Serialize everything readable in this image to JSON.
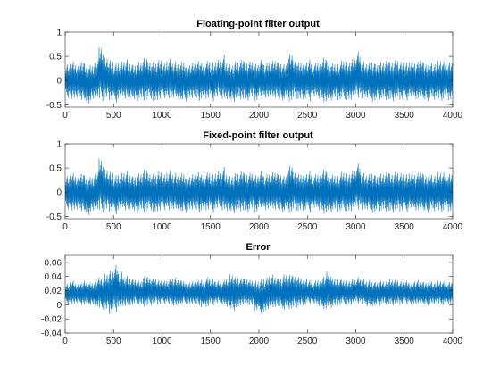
{
  "colors": {
    "series": "#0072BD",
    "axis": "#262626"
  },
  "chart_data": [
    {
      "type": "line",
      "title": "Floating-point filter output",
      "xlim": [
        0,
        4000
      ],
      "ylim": [
        -0.55,
        1
      ],
      "xticks": [
        0,
        500,
        1000,
        1500,
        2000,
        2500,
        3000,
        3500,
        4000
      ],
      "xtick_labels": [
        "0",
        "500",
        "1000",
        "1500",
        "2000",
        "2500",
        "3000",
        "3500",
        "4000"
      ],
      "yticks": [
        -0.5,
        0,
        0.5,
        1
      ],
      "ytick_labels": [
        "-0.5",
        "0",
        "0.5",
        "1"
      ],
      "series": [
        {
          "x_start": 0,
          "x_step": 50,
          "y_max": [
            0.35,
            0.42,
            0.38,
            0.45,
            0.4,
            0.36,
            0.48,
            0.72,
            0.5,
            0.44,
            0.38,
            0.42,
            0.46,
            0.4,
            0.37,
            0.43,
            0.52,
            0.41,
            0.39,
            0.45,
            0.38,
            0.47,
            0.42,
            0.4,
            0.44,
            0.38,
            0.41,
            0.46,
            0.39,
            0.43,
            0.4,
            0.45,
            0.55,
            0.42,
            0.38,
            0.44,
            0.48,
            0.4,
            0.42,
            0.37,
            0.45,
            0.39,
            0.43,
            0.47,
            0.41,
            0.38,
            0.6,
            0.44,
            0.4,
            0.42,
            0.46,
            0.39,
            0.43,
            0.55,
            0.45,
            0.4,
            0.38,
            0.44,
            0.41,
            0.47,
            0.62,
            0.42,
            0.4,
            0.45,
            0.38,
            0.43,
            0.46,
            0.4,
            0.44,
            0.41,
            0.39,
            0.45,
            0.42,
            0.48,
            0.4,
            0.43,
            0.38,
            0.44,
            0.42,
            0.4,
            0.43
          ],
          "y_min": [
            -0.38,
            -0.45,
            -0.4,
            -0.42,
            -0.5,
            -0.44,
            -0.39,
            -0.46,
            -0.41,
            -0.43,
            -0.48,
            -0.4,
            -0.42,
            -0.38,
            -0.45,
            -0.41,
            -0.44,
            -0.4,
            -0.47,
            -0.42,
            -0.39,
            -0.44,
            -0.4,
            -0.43,
            -0.46,
            -0.41,
            -0.38,
            -0.44,
            -0.42,
            -0.4,
            -0.45,
            -0.39,
            -0.43,
            -0.41,
            -0.46,
            -0.4,
            -0.42,
            -0.44,
            -0.39,
            -0.45,
            -0.41,
            -0.43,
            -0.4,
            -0.38,
            -0.44,
            -0.42,
            -0.46,
            -0.4,
            -0.43,
            -0.41,
            -0.45,
            -0.39,
            -0.42,
            -0.48,
            -0.44,
            -0.4,
            -0.43,
            -0.41,
            -0.45,
            -0.42,
            -0.39,
            -0.44,
            -0.4,
            -0.46,
            -0.42,
            -0.41,
            -0.43,
            -0.45,
            -0.4,
            -0.42,
            -0.44,
            -0.39,
            -0.43,
            -0.41,
            -0.45,
            -0.4,
            -0.42,
            -0.44,
            -0.41,
            -0.43,
            -0.4
          ]
        }
      ]
    },
    {
      "type": "line",
      "title": "Fixed-point filter output",
      "xlim": [
        0,
        4000
      ],
      "ylim": [
        -0.55,
        1
      ],
      "xticks": [
        0,
        500,
        1000,
        1500,
        2000,
        2500,
        3000,
        3500,
        4000
      ],
      "xtick_labels": [
        "0",
        "500",
        "1000",
        "1500",
        "2000",
        "2500",
        "3000",
        "3500",
        "4000"
      ],
      "yticks": [
        -0.5,
        0,
        0.5,
        1
      ],
      "ytick_labels": [
        "-0.5",
        "0",
        "0.5",
        "1"
      ],
      "series": [
        {
          "x_start": 0,
          "x_step": 50,
          "y_max": [
            0.35,
            0.42,
            0.38,
            0.45,
            0.4,
            0.36,
            0.48,
            0.72,
            0.5,
            0.44,
            0.38,
            0.42,
            0.46,
            0.4,
            0.37,
            0.43,
            0.52,
            0.41,
            0.39,
            0.45,
            0.38,
            0.47,
            0.42,
            0.4,
            0.44,
            0.38,
            0.41,
            0.46,
            0.39,
            0.43,
            0.4,
            0.45,
            0.55,
            0.42,
            0.38,
            0.44,
            0.48,
            0.4,
            0.42,
            0.37,
            0.45,
            0.39,
            0.43,
            0.47,
            0.41,
            0.38,
            0.6,
            0.44,
            0.4,
            0.42,
            0.46,
            0.39,
            0.43,
            0.55,
            0.45,
            0.4,
            0.38,
            0.44,
            0.41,
            0.47,
            0.62,
            0.42,
            0.4,
            0.45,
            0.38,
            0.43,
            0.46,
            0.4,
            0.44,
            0.41,
            0.39,
            0.45,
            0.42,
            0.48,
            0.4,
            0.43,
            0.38,
            0.44,
            0.42,
            0.4,
            0.43
          ],
          "y_min": [
            -0.38,
            -0.45,
            -0.4,
            -0.42,
            -0.5,
            -0.44,
            -0.39,
            -0.46,
            -0.41,
            -0.43,
            -0.48,
            -0.4,
            -0.42,
            -0.38,
            -0.45,
            -0.41,
            -0.44,
            -0.4,
            -0.47,
            -0.42,
            -0.39,
            -0.44,
            -0.4,
            -0.43,
            -0.46,
            -0.41,
            -0.38,
            -0.44,
            -0.42,
            -0.4,
            -0.45,
            -0.39,
            -0.43,
            -0.41,
            -0.46,
            -0.4,
            -0.42,
            -0.44,
            -0.39,
            -0.45,
            -0.41,
            -0.43,
            -0.4,
            -0.38,
            -0.44,
            -0.42,
            -0.46,
            -0.4,
            -0.43,
            -0.41,
            -0.45,
            -0.39,
            -0.42,
            -0.48,
            -0.44,
            -0.4,
            -0.43,
            -0.41,
            -0.45,
            -0.42,
            -0.39,
            -0.44,
            -0.4,
            -0.46,
            -0.42,
            -0.41,
            -0.43,
            -0.45,
            -0.4,
            -0.42,
            -0.44,
            -0.39,
            -0.43,
            -0.41,
            -0.45,
            -0.4,
            -0.42,
            -0.44,
            -0.41,
            -0.43,
            -0.4
          ]
        }
      ]
    },
    {
      "type": "line",
      "title": "Error",
      "xlim": [
        0,
        4000
      ],
      "ylim": [
        -0.04,
        0.07
      ],
      "xticks": [
        0,
        500,
        1000,
        1500,
        2000,
        2500,
        3000,
        3500,
        4000
      ],
      "xtick_labels": [
        "0",
        "500",
        "1000",
        "1500",
        "2000",
        "2500",
        "3000",
        "3500",
        "4000"
      ],
      "yticks": [
        -0.04,
        -0.02,
        0,
        0.02,
        0.04,
        0.06
      ],
      "ytick_labels": [
        "-0.04",
        "-0.02",
        "0",
        "0.02",
        "0.04",
        "0.06"
      ],
      "series": [
        {
          "x_start": 0,
          "x_step": 50,
          "y_max": [
            0.03,
            0.035,
            0.032,
            0.034,
            0.036,
            0.033,
            0.038,
            0.04,
            0.045,
            0.05,
            0.058,
            0.048,
            0.042,
            0.04,
            0.038,
            0.036,
            0.042,
            0.04,
            0.038,
            0.036,
            0.035,
            0.037,
            0.04,
            0.038,
            0.036,
            0.034,
            0.035,
            0.037,
            0.036,
            0.04,
            0.038,
            0.035,
            0.036,
            0.04,
            0.046,
            0.042,
            0.04,
            0.038,
            0.036,
            0.035,
            0.038,
            0.04,
            0.044,
            0.042,
            0.04,
            0.046,
            0.045,
            0.042,
            0.04,
            0.038,
            0.036,
            0.035,
            0.038,
            0.044,
            0.05,
            0.04,
            0.038,
            0.036,
            0.035,
            0.037,
            0.04,
            0.038,
            0.036,
            0.035,
            0.034,
            0.036,
            0.035,
            0.037,
            0.036,
            0.034,
            0.035,
            0.033,
            0.036,
            0.035,
            0.034,
            0.036,
            0.033,
            0.035,
            0.034,
            0.033,
            0.034
          ],
          "y_min": [
            0.0,
            -0.002,
            0.001,
            -0.001,
            0.0,
            -0.002,
            -0.004,
            -0.008,
            -0.01,
            -0.015,
            -0.012,
            -0.008,
            -0.004,
            -0.002,
            0.0,
            -0.002,
            -0.004,
            -0.002,
            0.0,
            -0.001,
            0.0,
            -0.002,
            -0.004,
            -0.002,
            0.0,
            -0.001,
            0.0,
            -0.002,
            -0.006,
            -0.004,
            -0.002,
            0.0,
            -0.002,
            -0.004,
            -0.01,
            -0.006,
            -0.002,
            0.0,
            -0.003,
            -0.01,
            -0.018,
            -0.012,
            -0.008,
            -0.004,
            -0.006,
            -0.01,
            -0.008,
            -0.006,
            -0.004,
            -0.002,
            0.0,
            -0.002,
            -0.004,
            -0.008,
            -0.006,
            -0.004,
            -0.002,
            0.0,
            -0.002,
            -0.001,
            0.0,
            -0.002,
            -0.004,
            -0.003,
            -0.002,
            0.0,
            -0.001,
            -0.002,
            0.0,
            -0.001,
            0.0,
            -0.002,
            -0.001,
            0.0,
            -0.002,
            -0.001,
            0.0,
            -0.001,
            -0.002,
            0.0,
            -0.001
          ]
        }
      ]
    }
  ]
}
